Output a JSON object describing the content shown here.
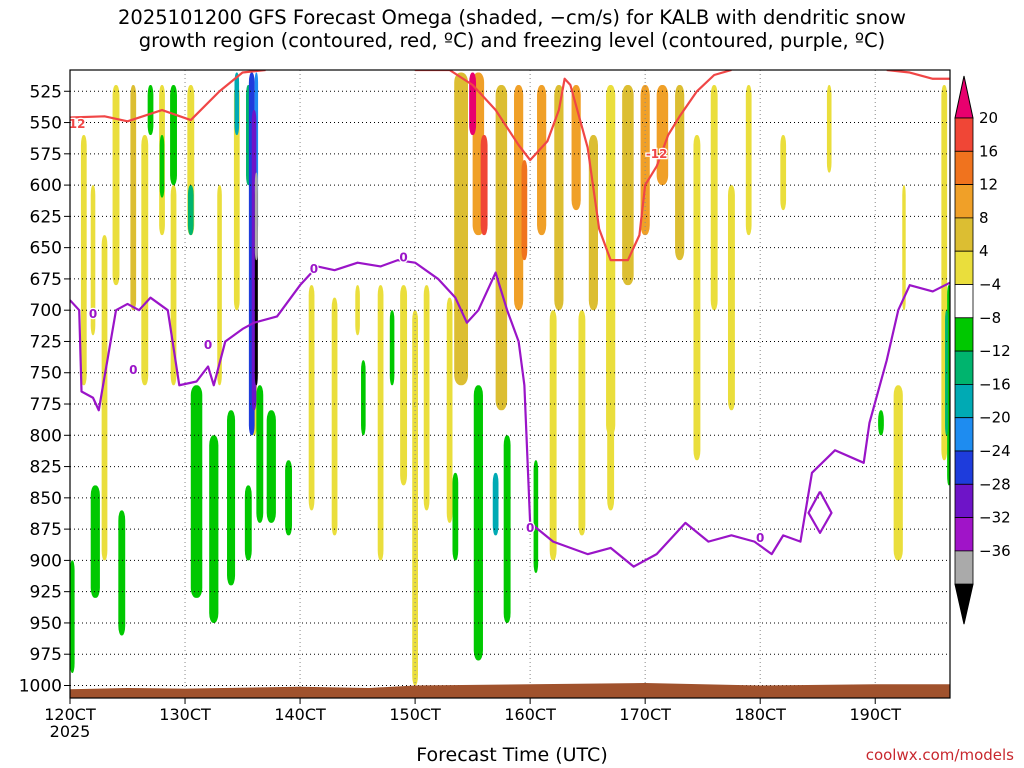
{
  "header": {
    "title_line1": "2025101200 GFS Forecast Omega (shaded, −cm/s) for KALB with dendritic snow",
    "title_line2": "growth region (contoured, red, ºC) and freezing level (contoured, purple, ºC)"
  },
  "footer": {
    "credit": "coolwx.com/models"
  },
  "chart_data": {
    "type": "heatmap",
    "title": "2025101200 GFS Forecast Omega (shaded, −cm/s) for KALB with dendritic snow growth region (contoured, red, ºC) and freezing level (contoured, purple, ºC)",
    "xlabel": "Forecast Time (UTC)",
    "ylabel": "",
    "x_ticks": [
      "120CT",
      "130CT",
      "140CT",
      "150CT",
      "160CT",
      "170CT",
      "180CT",
      "190CT"
    ],
    "x_tick_sub": "2025",
    "x_range_days": [
      12,
      19.65
    ],
    "y_ticks": [
      525,
      550,
      575,
      600,
      625,
      650,
      675,
      700,
      725,
      750,
      775,
      800,
      825,
      850,
      875,
      900,
      925,
      950,
      975,
      1000
    ],
    "y_range_hpa": [
      508,
      1010
    ],
    "grid": "dotted",
    "colorbar": {
      "labels": [
        "20",
        "16",
        "12",
        "8",
        "4",
        "−4",
        "−8",
        "−12",
        "−16",
        "−20",
        "−24",
        "−28",
        "−32",
        "−36"
      ],
      "colors": [
        "#e8006e",
        "#f04636",
        "#f0731e",
        "#f0a028",
        "#dcbe32",
        "#eade3c",
        "#ffffff",
        "#00c800",
        "#00b46e",
        "#00aab4",
        "#1e8cf0",
        "#1e3cdc",
        "#6e14c8",
        "#a014c8",
        "#aaaaaa",
        "#000000"
      ]
    },
    "contours": [
      {
        "name": "dendritic snow growth region",
        "color": "#f04646",
        "labels": [
          "-12",
          "-12"
        ],
        "points": [
          [
            12.0,
            546
          ],
          [
            12.3,
            545
          ],
          [
            12.5,
            549
          ],
          [
            12.8,
            540
          ],
          [
            13.05,
            548
          ],
          [
            13.3,
            525
          ],
          [
            13.5,
            510
          ],
          [
            13.7,
            508
          ]
        ]
      },
      {
        "name": "dendritic snow growth region",
        "color": "#f04646",
        "points": [
          [
            15.0,
            508
          ],
          [
            15.3,
            508
          ],
          [
            15.5,
            520
          ],
          [
            15.7,
            540
          ],
          [
            15.9,
            568
          ],
          [
            16.0,
            580
          ],
          [
            16.15,
            565
          ],
          [
            16.25,
            540
          ],
          [
            16.3,
            515
          ],
          [
            16.35,
            520
          ],
          [
            16.5,
            570
          ],
          [
            16.6,
            635
          ],
          [
            16.7,
            660
          ],
          [
            16.85,
            660
          ],
          [
            16.95,
            640
          ],
          [
            17.0,
            600
          ],
          [
            17.1,
            585
          ],
          [
            17.2,
            560
          ],
          [
            17.3,
            545
          ],
          [
            17.45,
            525
          ],
          [
            17.6,
            512
          ],
          [
            17.75,
            508
          ]
        ]
      },
      {
        "name": "dendritic snow growth region",
        "color": "#f04646",
        "points": [
          [
            19.1,
            508
          ],
          [
            19.3,
            510
          ],
          [
            19.5,
            515
          ],
          [
            19.65,
            515
          ]
        ]
      },
      {
        "name": "freezing level",
        "color": "#9a14c8",
        "labels": [
          "0",
          "0",
          "0",
          "0",
          "0",
          "0",
          "0"
        ],
        "points": [
          [
            12.0,
            692
          ],
          [
            12.08,
            700
          ],
          [
            12.1,
            765
          ],
          [
            12.2,
            770
          ],
          [
            12.25,
            780
          ],
          [
            12.4,
            700
          ],
          [
            12.5,
            695
          ],
          [
            12.6,
            700
          ],
          [
            12.7,
            690
          ],
          [
            12.85,
            700
          ],
          [
            12.95,
            760
          ],
          [
            13.1,
            757
          ],
          [
            13.2,
            745
          ],
          [
            13.25,
            760
          ],
          [
            13.35,
            725
          ],
          [
            13.5,
            715
          ],
          [
            13.6,
            710
          ],
          [
            13.8,
            705
          ],
          [
            14.0,
            680
          ],
          [
            14.15,
            665
          ],
          [
            14.3,
            668
          ],
          [
            14.5,
            662
          ],
          [
            14.7,
            665
          ],
          [
            14.85,
            660
          ],
          [
            15.0,
            662
          ],
          [
            15.2,
            675
          ],
          [
            15.35,
            690
          ],
          [
            15.45,
            710
          ],
          [
            15.55,
            700
          ],
          [
            15.7,
            670
          ],
          [
            15.8,
            700
          ],
          [
            15.9,
            725
          ],
          [
            15.95,
            760
          ],
          [
            16.0,
            870
          ],
          [
            16.2,
            885
          ],
          [
            16.5,
            895
          ],
          [
            16.7,
            890
          ],
          [
            16.9,
            905
          ],
          [
            17.1,
            895
          ],
          [
            17.35,
            870
          ],
          [
            17.55,
            885
          ],
          [
            17.75,
            880
          ],
          [
            17.95,
            885
          ],
          [
            18.1,
            895
          ],
          [
            18.2,
            880
          ],
          [
            18.35,
            885
          ],
          [
            18.45,
            830
          ],
          [
            18.65,
            812
          ],
          [
            18.9,
            822
          ],
          [
            18.95,
            790
          ],
          [
            19.1,
            740
          ],
          [
            19.2,
            700
          ],
          [
            19.3,
            680
          ],
          [
            19.5,
            685
          ],
          [
            19.65,
            678
          ]
        ]
      },
      {
        "name": "freezing level",
        "color": "#9a14c8",
        "points": [
          [
            18.52,
            845
          ],
          [
            18.62,
            862
          ],
          [
            18.52,
            878
          ],
          [
            18.42,
            862
          ],
          [
            18.52,
            845
          ]
        ]
      }
    ]
  }
}
